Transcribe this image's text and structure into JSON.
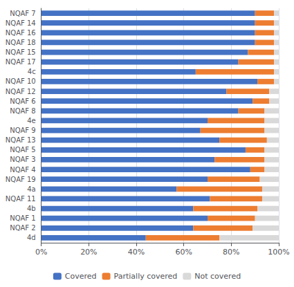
{
  "chart_data": {
    "type": "bar",
    "orientation": "horizontal",
    "stacked": true,
    "categories": [
      "NQAF 7",
      "NQAF 14",
      "NQAF 16",
      "NQAF 18",
      "NQAF 15",
      "NQAF 17",
      "4c",
      "NQAF 10",
      "NQAF 12",
      "NQAF 6",
      "NQAF 8",
      "4e",
      "NQAF 9",
      "NQAF 13",
      "NQAF 5",
      "NQAF 3",
      "NQAF 4",
      "NQAF 19",
      "4a",
      "NQAF 11",
      "4b",
      "NQAF 1",
      "NQAF 2",
      "4d"
    ],
    "series": [
      {
        "name": "Covered",
        "color": "#4472c4",
        "values": [
          90,
          90,
          90,
          90,
          87,
          83,
          65,
          91,
          78,
          89,
          83,
          70,
          67,
          75,
          86,
          73,
          88,
          70,
          57,
          71,
          64,
          70,
          64,
          44
        ]
      },
      {
        "name": "Partially covered",
        "color": "#ed7d31",
        "values": [
          8,
          8,
          8,
          8,
          11,
          15,
          33,
          7,
          18,
          7,
          11,
          24,
          27,
          20,
          8,
          21,
          6,
          22,
          36,
          22,
          27,
          20,
          25,
          31
        ]
      },
      {
        "name": "Not covered",
        "color": "#d9d9d9",
        "values": [
          2,
          2,
          2,
          2,
          2,
          2,
          2,
          2,
          4,
          4,
          6,
          6,
          6,
          5,
          6,
          6,
          6,
          8,
          7,
          7,
          9,
          10,
          11,
          25
        ]
      }
    ],
    "xlim": [
      0,
      100
    ],
    "xticks": [
      {
        "value": 0,
        "label": "0%"
      },
      {
        "value": 20,
        "label": "20%"
      },
      {
        "value": 40,
        "label": "40%"
      },
      {
        "value": 60,
        "label": "60%"
      },
      {
        "value": 80,
        "label": "80%"
      },
      {
        "value": 100,
        "label": "100%"
      }
    ],
    "grid": true,
    "legend": "bottom"
  }
}
